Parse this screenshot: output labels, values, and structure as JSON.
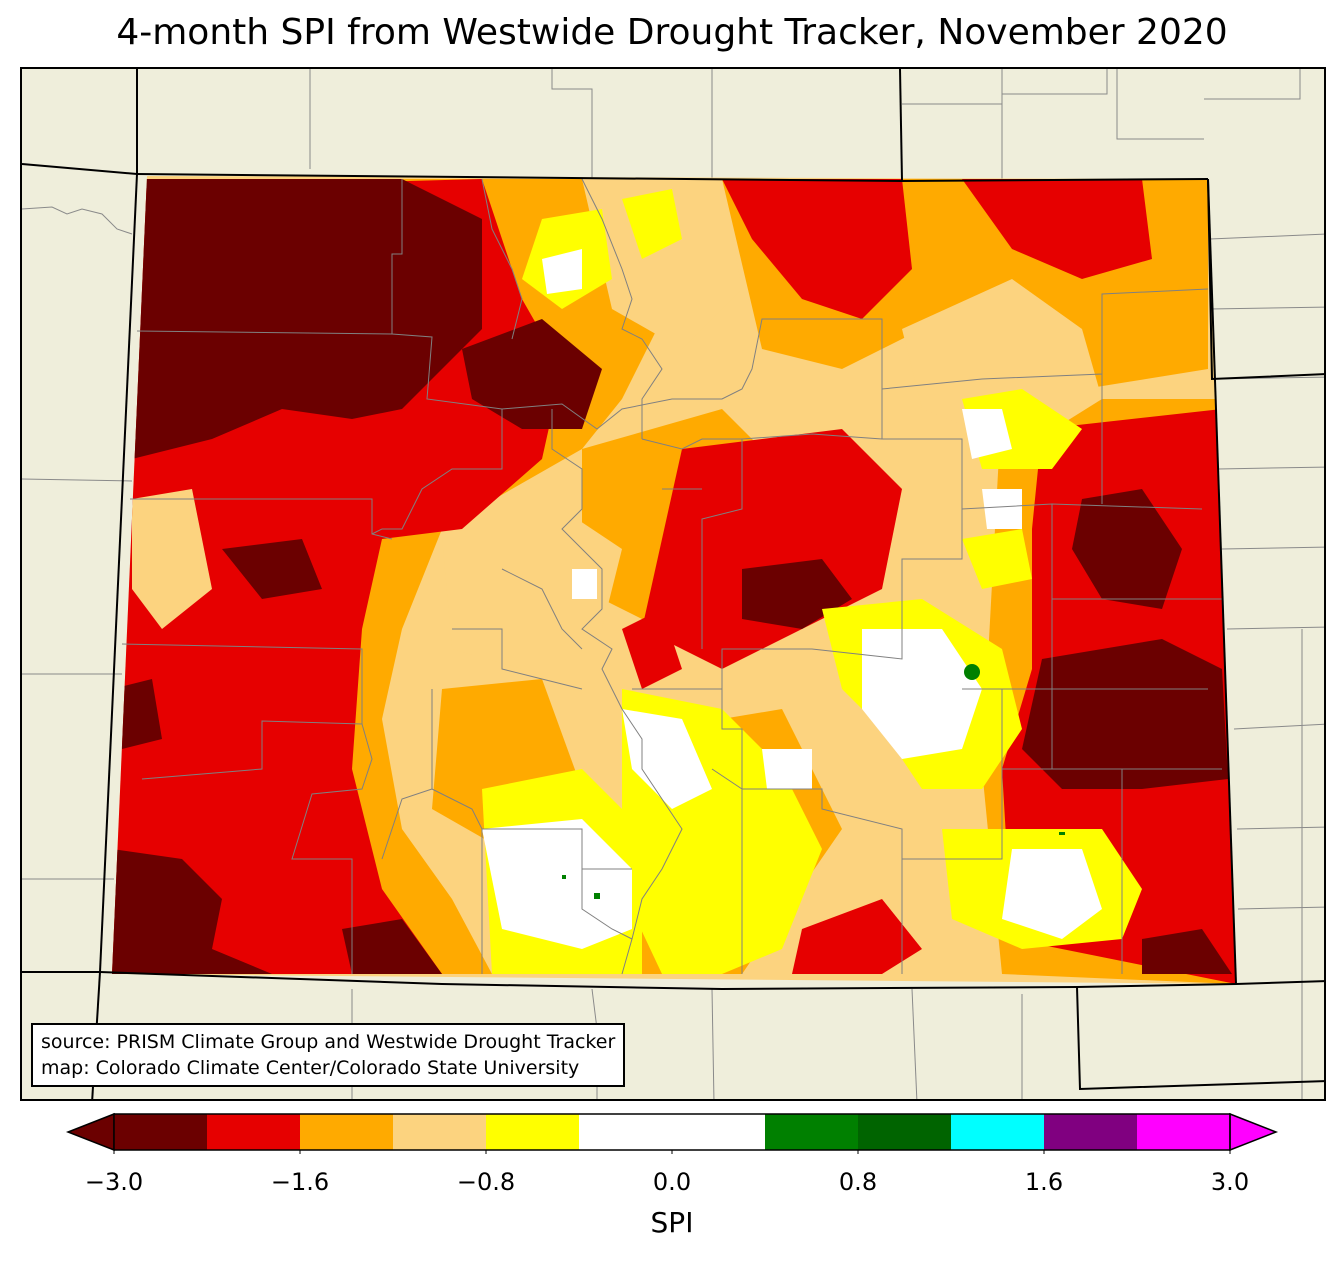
{
  "title": "4-month SPI from Westwide Drought Tracker, November 2020",
  "source_lines": [
    "source: PRISM Climate Group and Westwide Drought Tracker",
    "map: Colorado Climate Center/Colorado State University"
  ],
  "colorbar": {
    "label": "SPI",
    "ticks": [
      "−3.0",
      "−1.6",
      "−0.8",
      "0.0",
      "0.8",
      "1.6",
      "3.0"
    ],
    "under_color": "#6b0000",
    "over_color": "#ff00ff",
    "bins": [
      {
        "color": "#6b0000"
      },
      {
        "color": "#e60000"
      },
      {
        "color": "#ffaa00"
      },
      {
        "color": "#fcd37f"
      },
      {
        "color": "#ffff00"
      },
      {
        "color": "#ffffff"
      },
      {
        "color": "#ffffff"
      },
      {
        "color": "#008000"
      },
      {
        "color": "#006400"
      },
      {
        "color": "#00ffff"
      },
      {
        "color": "#800080"
      },
      {
        "color": "#ff00ff"
      }
    ]
  },
  "map": {
    "background_color": "#efeedb",
    "legend_categories": {
      "extreme_dry": "#6b0000",
      "severe_dry": "#e60000",
      "moderate_dry": "#ffaa00",
      "abnormal_dry": "#fcd37f",
      "slight_dry": "#ffff00",
      "near_normal": "#ffffff",
      "wet": "#008000"
    }
  }
}
